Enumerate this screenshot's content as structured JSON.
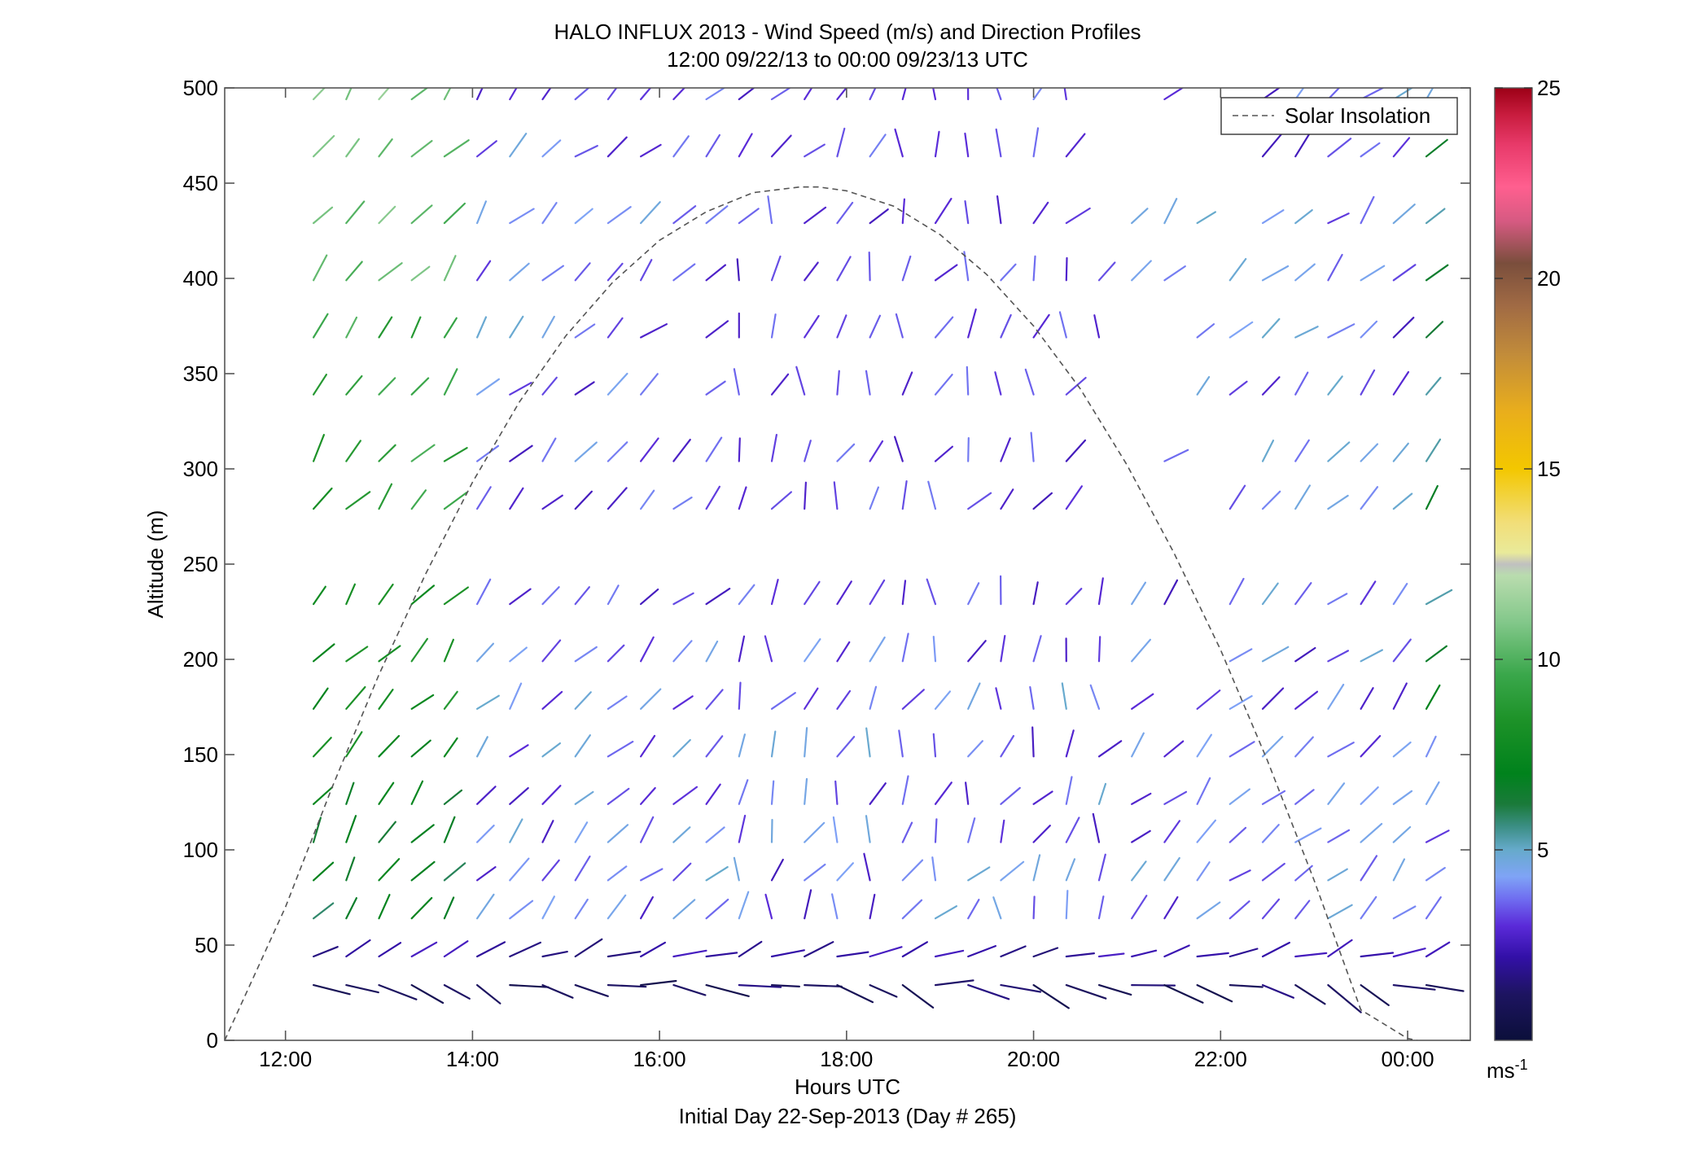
{
  "chart_data": {
    "type": "wind-barb-profile",
    "title": "HALO INFLUX 2013 - Wind Speed (m/s) and Direction Profiles",
    "subtitle": "12:00 09/22/13 to 00:00 09/23/13  UTC",
    "xlabel": "Hours UTC",
    "xlabel2": "Initial Day 22-Sep-2013 (Day # 265)",
    "ylabel": "Altitude (m)",
    "xlim": [
      11.35,
      24.67
    ],
    "ylim": [
      0,
      500
    ],
    "x_ticks": [
      12,
      14,
      16,
      18,
      20,
      22,
      24
    ],
    "x_tick_labels": [
      "12:00",
      "14:00",
      "16:00",
      "18:00",
      "20:00",
      "22:00",
      "00:00"
    ],
    "y_ticks": [
      0,
      50,
      100,
      150,
      200,
      250,
      300,
      350,
      400,
      450,
      500
    ],
    "y_tick_labels": [
      "0",
      "50",
      "100",
      "150",
      "200",
      "250",
      "300",
      "350",
      "400",
      "450",
      "500"
    ],
    "grid": false,
    "legend": {
      "label": "Solar Insolation",
      "position": "top-right",
      "style": "dashed"
    },
    "colorbar": {
      "range": [
        0,
        25
      ],
      "ticks": [
        5,
        10,
        15,
        20,
        25
      ],
      "tick_labels": [
        "5",
        "10",
        "15",
        "20",
        "25"
      ],
      "unit_label": "ms",
      "unit_exponent": "-1",
      "stops": [
        {
          "v": 0,
          "c": "#0b0f3a"
        },
        {
          "v": 1.2,
          "c": "#1d1460"
        },
        {
          "v": 2.2,
          "c": "#3310a8"
        },
        {
          "v": 3,
          "c": "#5a2ad8"
        },
        {
          "v": 3.7,
          "c": "#6f6cf0"
        },
        {
          "v": 4.3,
          "c": "#7fa4f6"
        },
        {
          "v": 5,
          "c": "#66aacb"
        },
        {
          "v": 5.6,
          "c": "#3c8f86"
        },
        {
          "v": 6.2,
          "c": "#1a7a3a"
        },
        {
          "v": 7,
          "c": "#00821c"
        },
        {
          "v": 8.4,
          "c": "#1d9228"
        },
        {
          "v": 9.6,
          "c": "#3aa74b"
        },
        {
          "v": 11,
          "c": "#84c88b"
        },
        {
          "v": 12.2,
          "c": "#b9dcae"
        },
        {
          "v": 12.5,
          "c": "#c0c0c0"
        },
        {
          "v": 12.8,
          "c": "#e9ea9a"
        },
        {
          "v": 13.6,
          "c": "#f2de78"
        },
        {
          "v": 15,
          "c": "#f3c700"
        },
        {
          "v": 16.5,
          "c": "#e9ae1c"
        },
        {
          "v": 18,
          "c": "#c28c3a"
        },
        {
          "v": 19.3,
          "c": "#a06a44"
        },
        {
          "v": 20.4,
          "c": "#7a4e3c"
        },
        {
          "v": 21.5,
          "c": "#d65a82"
        },
        {
          "v": 22.4,
          "c": "#ff5f8f"
        },
        {
          "v": 23.5,
          "c": "#e83a6a"
        },
        {
          "v": 24.3,
          "c": "#c81c3e"
        },
        {
          "v": 25,
          "c": "#9c0016"
        }
      ]
    },
    "solar_insolation": {
      "x": [
        11.35,
        12.0,
        12.5,
        13.0,
        13.5,
        14.0,
        14.5,
        15.0,
        15.5,
        16.0,
        16.5,
        17.0,
        17.5,
        17.7,
        18.0,
        18.5,
        19.0,
        19.5,
        20.0,
        20.5,
        21.0,
        21.5,
        22.0,
        22.5,
        23.0,
        23.5,
        24.0,
        24.1
      ],
      "y": [
        0,
        70,
        133,
        192,
        245,
        293,
        335,
        370,
        398,
        420,
        435,
        445,
        448,
        448,
        446,
        438,
        423,
        402,
        375,
        342,
        302,
        256,
        205,
        147,
        84,
        16,
        1,
        0
      ]
    },
    "altitudes": [
      29,
      44,
      64,
      84,
      104,
      124,
      149,
      174,
      199,
      229,
      279,
      304,
      339,
      369,
      399,
      429,
      464,
      494
    ],
    "times": [
      12.3,
      12.65,
      13.0,
      13.35,
      13.7,
      14.05,
      14.4,
      14.75,
      15.1,
      15.45,
      15.8,
      16.15,
      16.5,
      16.85,
      17.2,
      17.55,
      17.9,
      18.25,
      18.6,
      18.95,
      19.3,
      19.65,
      20.0,
      20.35,
      20.7,
      21.05,
      21.4,
      21.75,
      22.1,
      22.45,
      22.8,
      23.15,
      23.5,
      23.85,
      24.2
    ]
  }
}
